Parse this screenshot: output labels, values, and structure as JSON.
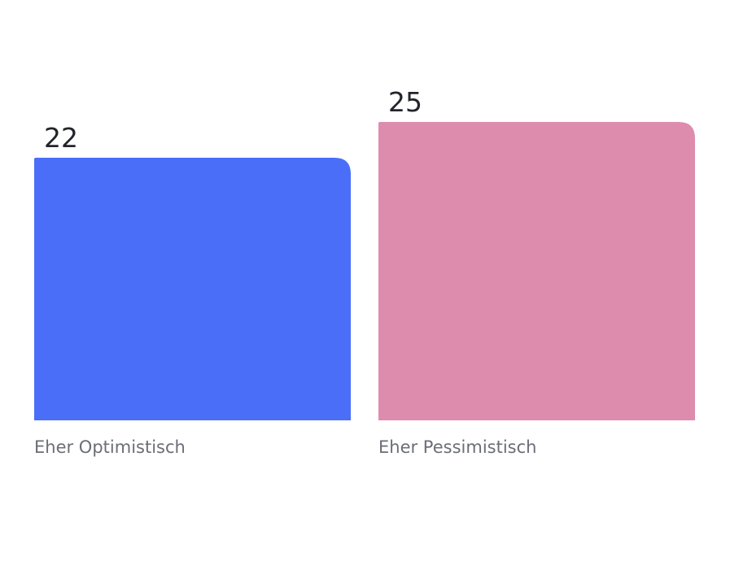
{
  "chart_data": {
    "type": "bar",
    "categories": [
      "Eher Optimistisch",
      "Eher Pessimistisch"
    ],
    "values": [
      22,
      25
    ],
    "colors": [
      "#4a6ef8",
      "#de8cad"
    ],
    "title": "",
    "xlabel": "",
    "ylabel": "",
    "ylim": [
      0,
      25
    ],
    "grid": false,
    "legend": "none"
  }
}
